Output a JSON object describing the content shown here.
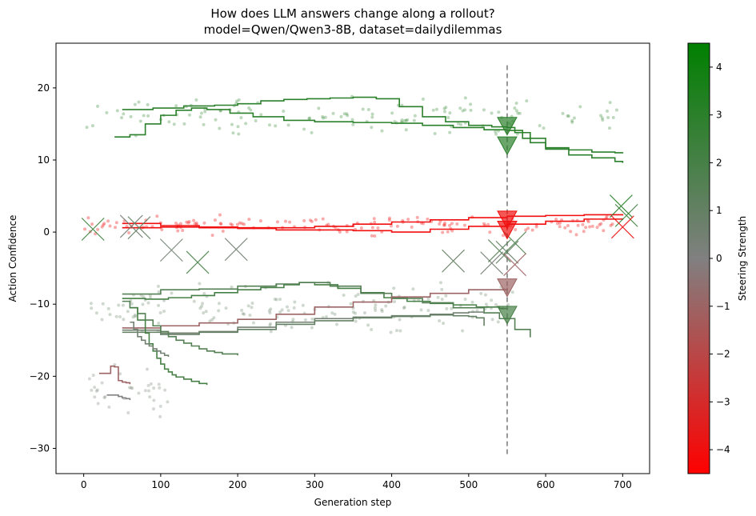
{
  "chart_data": {
    "type": "scatter",
    "title": "How does LLM answers change along a rollout?",
    "subtitle": "model=Qwen/Qwen3-8B, dataset=dailydilemmas",
    "xlabel": "Generation step",
    "ylabel": "Action Confidence",
    "xlim": [
      -36,
      735
    ],
    "ylim": [
      -33.5,
      26.2
    ],
    "xticks": [
      0,
      100,
      200,
      300,
      400,
      500,
      600,
      700
    ],
    "yticks": [
      -30,
      -20,
      -10,
      0,
      10,
      20
    ],
    "grid": false,
    "vline": {
      "x": 550,
      "y_range": [
        -30.8,
        23.5
      ],
      "style": "dashed",
      "color": "#808080"
    },
    "colorbar": {
      "label": "Steering Strength",
      "range": [
        -4.5,
        4.5
      ],
      "ticks": [
        -4,
        -3,
        -2,
        -1,
        0,
        1,
        2,
        3,
        4
      ],
      "colors": {
        "low": "#ff0000",
        "mid": "#808080",
        "high": "#008000"
      }
    },
    "series": [
      {
        "strength": 3,
        "x": [
          50,
          90,
          130,
          170,
          200,
          230,
          260,
          290,
          320,
          350,
          380,
          410,
          440,
          470,
          500,
          530,
          550,
          560,
          580,
          600,
          630,
          660,
          690,
          700
        ],
        "y": [
          17,
          17.2,
          17.5,
          17.6,
          17.8,
          18.2,
          18.4,
          18.5,
          18.6,
          18.7,
          18.5,
          17.4,
          16,
          15.3,
          14.8,
          14.6,
          14.5,
          13.8,
          12.4,
          11.7,
          11.4,
          11.1,
          11,
          11.1
        ]
      },
      {
        "strength": 3,
        "x": [
          40,
          60,
          80,
          100,
          120,
          140,
          160,
          190,
          220,
          260,
          300,
          350,
          400,
          440,
          480,
          520,
          550,
          570,
          600,
          630,
          660,
          690,
          700
        ],
        "y": [
          13.2,
          13.5,
          15,
          16.2,
          16.9,
          17.2,
          17,
          16.5,
          16,
          15.5,
          15.3,
          15.2,
          15.1,
          14.8,
          14.5,
          14.2,
          14.1,
          13,
          11.5,
          10.7,
          10.3,
          9.8,
          9.6
        ]
      },
      {
        "strength": -4,
        "x": [
          50,
          100,
          150,
          200,
          250,
          300,
          350,
          400,
          450,
          500,
          550,
          600,
          650,
          700
        ],
        "y": [
          1.2,
          0.9,
          0.7,
          0.6,
          0.6,
          0.8,
          1.1,
          1.4,
          1.7,
          2,
          2.2,
          2.3,
          2.4,
          2.3
        ]
      },
      {
        "strength": -4,
        "x": [
          50,
          100,
          150,
          200,
          250,
          300,
          350,
          400,
          450,
          500,
          550,
          600,
          650,
          700
        ],
        "y": [
          0.6,
          0.7,
          0.6,
          0.5,
          0.3,
          0.3,
          0.2,
          0,
          0.4,
          0.8,
          1.1,
          1.5,
          1.8,
          1.9
        ]
      },
      {
        "strength": 2,
        "x": [
          50,
          80,
          110,
          140,
          170,
          200,
          230,
          260,
          280,
          300,
          330,
          360,
          390,
          420,
          450,
          480,
          510,
          540,
          550
        ],
        "y": [
          -9.2,
          -9.3,
          -9.1,
          -8.8,
          -8.4,
          -8,
          -7.7,
          -7.3,
          -7,
          -7.3,
          -7.8,
          -8.4,
          -9.1,
          -9.6,
          -9.9,
          -10.1,
          -10.4,
          -10.6,
          -10.7
        ]
      },
      {
        "strength": 1.5,
        "x": [
          50,
          100,
          150,
          200,
          250,
          280,
          320,
          360,
          400,
          440,
          480,
          520,
          540,
          560,
          580
        ],
        "y": [
          -8.6,
          -8,
          -7.9,
          -7.5,
          -7.2,
          -7,
          -7.5,
          -8.5,
          -9.2,
          -9.8,
          -10.5,
          -11.2,
          -12,
          -13.5,
          -14.6
        ]
      },
      {
        "strength": -1,
        "x": [
          50,
          100,
          150,
          200,
          250,
          300,
          350,
          400,
          450,
          500,
          550
        ],
        "y": [
          -13.3,
          -13,
          -12.6,
          -12.1,
          -11.4,
          -10.4,
          -9.7,
          -9,
          -8.5,
          -8,
          -7.7
        ]
      },
      {
        "strength": 0.5,
        "x": [
          50,
          100,
          150,
          200,
          250,
          300,
          350,
          400,
          450,
          480,
          500,
          520
        ],
        "y": [
          -13.6,
          -14,
          -13.8,
          -13.2,
          -12.5,
          -12,
          -11.8,
          -11.6,
          -11.4,
          -11.2,
          -11.1,
          -11.3
        ]
      },
      {
        "strength": 1,
        "x": [
          50,
          100,
          150,
          200,
          250,
          300,
          350,
          400,
          450,
          480,
          500,
          510,
          520
        ],
        "y": [
          -13.9,
          -14.2,
          -13.9,
          -13.5,
          -12.8,
          -12.3,
          -11.9,
          -11.7,
          -11.5,
          -11.6,
          -11.7,
          -11.9,
          -13
        ]
      },
      {
        "strength": 1.5,
        "x": [
          50,
          60,
          70,
          80,
          90,
          100,
          110,
          120,
          130,
          140,
          150,
          160,
          170,
          180,
          200
        ],
        "y": [
          -9.6,
          -10.5,
          -11.3,
          -12.2,
          -13,
          -13.8,
          -14.5,
          -15,
          -15.4,
          -15.8,
          -16.2,
          -16.5,
          -16.7,
          -16.9,
          -17.1
        ]
      },
      {
        "strength": 2,
        "x": [
          60,
          70,
          80,
          85,
          90,
          95,
          100,
          105,
          110,
          115,
          120,
          130,
          140,
          150,
          160
        ],
        "y": [
          -10.5,
          -12.2,
          -14,
          -15.5,
          -16.5,
          -17.5,
          -18.3,
          -19,
          -19.4,
          -19.8,
          -20.1,
          -20.4,
          -20.7,
          -21,
          -21.2
        ]
      },
      {
        "strength": 0.5,
        "x": [
          60,
          65,
          70,
          75,
          80,
          85,
          90,
          95,
          100,
          105,
          110
        ],
        "y": [
          -12.5,
          -13.5,
          -14.5,
          -15,
          -15.5,
          -15.8,
          -16.2,
          -16.5,
          -16.8,
          -17.1,
          -17.3
        ]
      },
      {
        "strength": -1,
        "x": [
          20,
          30,
          35,
          40,
          45,
          50,
          55,
          60
        ],
        "y": [
          -19.6,
          -19.6,
          -18.6,
          -18.7,
          -20.6,
          -20.8,
          -20.9,
          -21.1
        ]
      },
      {
        "strength": 0,
        "x": [
          30,
          40,
          45,
          50,
          55,
          60
        ],
        "y": [
          -22.6,
          -22.6,
          -22.8,
          -23,
          -23.1,
          -23.3
        ]
      }
    ],
    "end_markers": [
      {
        "x": 550,
        "y": 14.8,
        "strength": 3
      },
      {
        "x": 550,
        "y": 12.1,
        "strength": 3
      },
      {
        "x": 550,
        "y": 1.8,
        "strength": -4
      },
      {
        "x": 550,
        "y": 0.4,
        "strength": -4
      },
      {
        "x": 550,
        "y": -7.6,
        "strength": -1
      },
      {
        "x": 550,
        "y": -11.4,
        "strength": 2
      }
    ],
    "x_markers": [
      {
        "x": 12,
        "y": 0.4,
        "strength": 2.5
      },
      {
        "x": 62,
        "y": 0.8,
        "strength": 0.5
      },
      {
        "x": 72,
        "y": 0.6,
        "strength": 1
      },
      {
        "x": 114,
        "y": -2.5,
        "strength": 0.5
      },
      {
        "x": 148,
        "y": -4.2,
        "strength": 2
      },
      {
        "x": 198,
        "y": -2.4,
        "strength": 0.5
      },
      {
        "x": 480,
        "y": -4,
        "strength": 1
      },
      {
        "x": 530,
        "y": -4.3,
        "strength": 0.5
      },
      {
        "x": 540,
        "y": -2.6,
        "strength": 1.5
      },
      {
        "x": 550,
        "y": -2.8,
        "strength": 1
      },
      {
        "x": 560,
        "y": -1.5,
        "strength": 2
      },
      {
        "x": 560,
        "y": -4.5,
        "strength": -1
      },
      {
        "x": 698,
        "y": 3.6,
        "strength": 3
      },
      {
        "x": 705,
        "y": 2.3,
        "strength": 2.5
      },
      {
        "x": 700,
        "y": 0.7,
        "strength": -4
      }
    ],
    "scatter_clusters": [
      {
        "strength": 3,
        "x_range": [
          0,
          700
        ],
        "y_center": 16,
        "spread": 3.5,
        "count": 150,
        "alpha": 0.3
      },
      {
        "strength": -4,
        "x_range": [
          0,
          700
        ],
        "y_center": 1,
        "spread": 1.8,
        "count": 160,
        "alpha": 0.35
      },
      {
        "strength": 1,
        "x_range": [
          0,
          560
        ],
        "y_center": -10.5,
        "spread": 4.5,
        "count": 170,
        "alpha": 0.3
      },
      {
        "strength": 0.5,
        "x_range": [
          0,
          110
        ],
        "y_center": -22,
        "spread": 5,
        "count": 35,
        "alpha": 0.3
      }
    ]
  }
}
